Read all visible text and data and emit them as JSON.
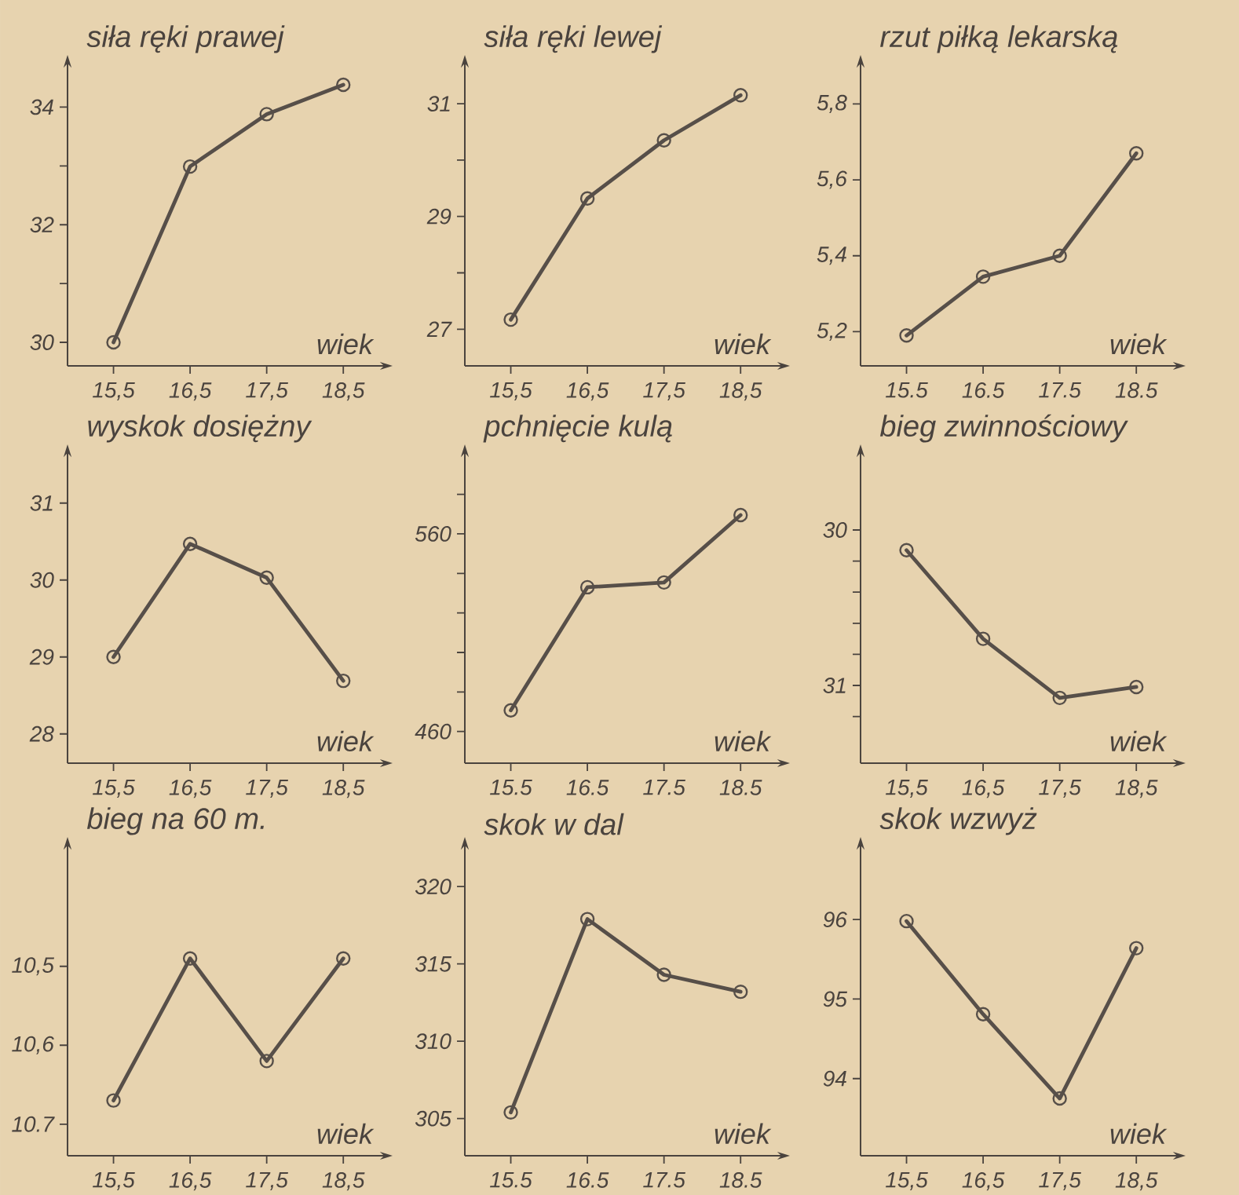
{
  "chart_data": [
    {
      "type": "line",
      "title": "siła ręki prawej",
      "xlabel": "wiek",
      "x": [
        15.5,
        16.5,
        17.5,
        18.5
      ],
      "values": [
        30.0,
        32.99,
        33.88,
        34.38
      ],
      "color": "#574f49",
      "marker": "circle",
      "line_style": "solid",
      "xlim": [
        14.9,
        19.0
      ],
      "xticks": [
        {
          "value": 15.5,
          "label": "15,5"
        },
        {
          "value": 16.5,
          "label": "16,5"
        },
        {
          "value": 17.5,
          "label": "17,5"
        },
        {
          "value": 18.5,
          "label": "18,5"
        }
      ],
      "ylim": [
        29.6,
        34.7
      ],
      "yticks": [
        30,
        {
          "value": 31,
          "label": null
        },
        32,
        {
          "value": 33,
          "label": null
        },
        34
      ]
    },
    {
      "type": "line",
      "title": "siła ręki lewej",
      "xlabel": "wiek",
      "x": [
        15.5,
        16.5,
        17.5,
        18.5
      ],
      "values": [
        27.17,
        29.32,
        30.35,
        31.15
      ],
      "color": "#574f49",
      "marker": "circle",
      "line_style": "solid",
      "xlim": [
        14.9,
        19.0
      ],
      "xticks": [
        {
          "value": 15.5,
          "label": "15,5"
        },
        {
          "value": 16.5,
          "label": "16,5"
        },
        {
          "value": 17.5,
          "label": "17,5"
        },
        {
          "value": 18.5,
          "label": "18,5"
        }
      ],
      "ylim": [
        26.35,
        31.67
      ],
      "yticks": [
        27,
        {
          "value": 28,
          "label": null
        },
        29,
        {
          "value": 30,
          "label": null
        },
        31
      ]
    },
    {
      "type": "line",
      "title": "rzut piłką lekarską",
      "xlabel": "wiek",
      "x": [
        15.5,
        16.5,
        17.5,
        18.5
      ],
      "values": [
        5.19,
        5.345,
        5.4,
        5.67
      ],
      "color": "#574f49",
      "marker": "circle",
      "line_style": "solid",
      "xlim": [
        14.9,
        19.0
      ],
      "xticks": [
        15.5,
        16.5,
        17.5,
        18.5
      ],
      "ylim": [
        5.11,
        5.9
      ],
      "yticks": [
        {
          "value": 5.2,
          "label": "5,2"
        },
        {
          "value": 5.4,
          "label": "5,4"
        },
        {
          "value": 5.6,
          "label": "5,6"
        },
        {
          "value": 5.8,
          "label": "5,8"
        }
      ]
    },
    {
      "type": "line",
      "title": "wyskok dosiężny",
      "xlabel": "wiek",
      "x": [
        15.5,
        16.5,
        17.5,
        18.5
      ],
      "values": [
        29.0,
        30.47,
        30.03,
        28.69
      ],
      "color": "#574f49",
      "marker": "circle",
      "line_style": "solid",
      "xlim": [
        14.9,
        19.0
      ],
      "xticks": [
        {
          "value": 15.5,
          "label": "15,5"
        },
        {
          "value": 16.5,
          "label": "16,5"
        },
        {
          "value": 17.5,
          "label": "17,5"
        },
        {
          "value": 18.5,
          "label": "18,5"
        }
      ],
      "ylim": [
        27.62,
        31.62
      ],
      "yticks": [
        28,
        29,
        30,
        31
      ]
    },
    {
      "type": "line",
      "title": "pchnięcie kulą",
      "xlabel": "wiek",
      "x": [
        15.5,
        16.5,
        17.5,
        18.5
      ],
      "values": [
        470.7,
        533,
        535.4,
        569.5
      ],
      "color": "#574f49",
      "marker": "circle",
      "line_style": "solid",
      "xlim": [
        14.9,
        19.0
      ],
      "xticks": [
        15.5,
        16.5,
        17.5,
        18.5
      ],
      "ylim": [
        444,
        599.7
      ],
      "yticks": [
        460,
        {
          "value": 480,
          "label": null
        },
        {
          "value": 500,
          "label": null
        },
        {
          "value": 520,
          "label": null
        },
        {
          "value": 540,
          "label": null
        },
        560,
        {
          "value": 580,
          "label": null
        }
      ]
    },
    {
      "type": "line",
      "title": "bieg zwinnościowy",
      "xlabel": "wiek",
      "x": [
        15.5,
        16.5,
        17.5,
        18.5
      ],
      "values": [
        30.13,
        30.7,
        31.08,
        31.01
      ],
      "color": "#574f49",
      "marker": "circle",
      "line_style": "solid",
      "xlim": [
        14.9,
        19.0
      ],
      "xticks": [
        {
          "value": 15.5,
          "label": "15,5"
        },
        {
          "value": 16.5,
          "label": "16,5"
        },
        {
          "value": 17.5,
          "label": "17,5"
        },
        {
          "value": 18.5,
          "label": "18,5"
        }
      ],
      "ylim": [
        31.5,
        29.52
      ],
      "yticks": [
        30,
        {
          "value": 30.2,
          "label": null
        },
        {
          "value": 30.4,
          "label": null
        },
        {
          "value": 30.6,
          "label": null
        },
        {
          "value": 30.8,
          "label": null
        },
        31,
        {
          "value": 31.2,
          "label": null
        }
      ]
    },
    {
      "type": "line",
      "title": "bieg na 60 m.",
      "xlabel": "wiek",
      "x": [
        15.5,
        16.5,
        17.5,
        18.5
      ],
      "values": [
        10.67,
        10.49,
        10.62,
        10.49
      ],
      "color": "#574f49",
      "marker": "circle",
      "line_style": "solid",
      "xlim": [
        14.9,
        19.0
      ],
      "xticks": [
        {
          "value": 15.5,
          "label": "15,5"
        },
        {
          "value": 16.5,
          "label": "16,5"
        },
        {
          "value": 17.5,
          "label": "17,5"
        },
        {
          "value": 18.5,
          "label": "18,5"
        }
      ],
      "ylim": [
        10.74,
        10.35
      ],
      "yticks": [
        {
          "value": 10.5,
          "label": "10,5"
        },
        {
          "value": 10.6,
          "label": "10,6"
        },
        10.7
      ]
    },
    {
      "type": "line",
      "title": "skok w dal",
      "xlabel": "wiek",
      "x": [
        15.5,
        16.5,
        17.5,
        18.5
      ],
      "values": [
        305.4,
        317.9,
        314.3,
        313.2
      ],
      "color": "#574f49",
      "marker": "circle",
      "line_style": "solid",
      "xlim": [
        14.9,
        19.0
      ],
      "xticks": [
        15.5,
        16.5,
        17.5,
        18.5
      ],
      "ylim": [
        302.6,
        322.5
      ],
      "yticks": [
        305,
        310,
        315,
        320
      ]
    },
    {
      "type": "line",
      "title": "skok wzwyż",
      "xlabel": "wiek",
      "x": [
        15.5,
        16.5,
        17.5,
        18.5
      ],
      "values": [
        95.98,
        94.81,
        93.75,
        95.64
      ],
      "color": "#574f49",
      "marker": "circle",
      "line_style": "solid",
      "xlim": [
        14.9,
        19.0
      ],
      "xticks": [
        {
          "value": 15.5,
          "label": "15,5"
        },
        {
          "value": 16.5,
          "label": "16,5"
        },
        {
          "value": 17.5,
          "label": "17,5"
        },
        {
          "value": 18.5,
          "label": "18,5"
        }
      ],
      "ylim": [
        93.03,
        96.9
      ],
      "yticks": [
        94,
        95,
        96
      ]
    }
  ]
}
